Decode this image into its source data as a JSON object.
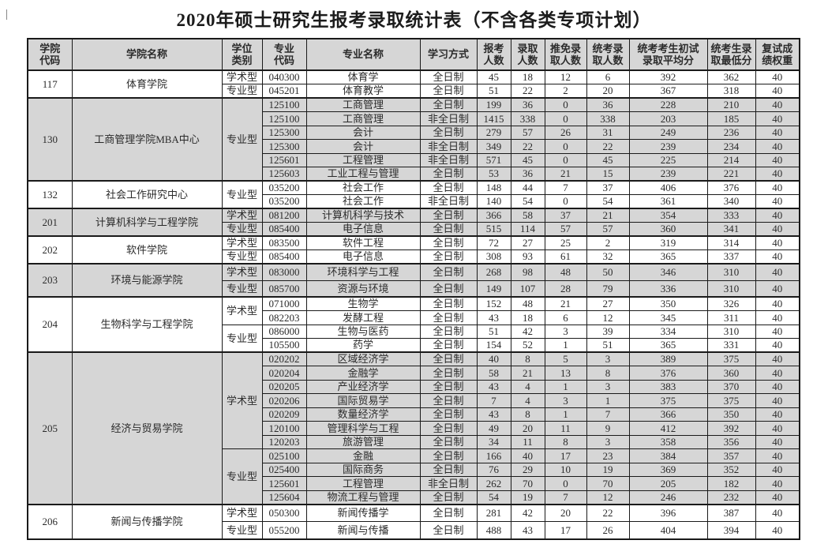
{
  "title": "2020年硕士研究生报考录取统计表（不含各类专项计划）",
  "columns": [
    "学院\n代码",
    "学院名称",
    "学位\n类别",
    "专业\n代码",
    "专业名称",
    "学习方式",
    "报考\n人数",
    "录取\n人数",
    "推免录\n取人数",
    "统考录\n取人数",
    "统考考生初试\n录取平均分",
    "统考生录\n取最低分",
    "复试成\n绩权重"
  ],
  "colors": {
    "shaded_row_bg": "#d6d6d6",
    "header_bg": "#d6d6d6",
    "border": "#1a1a1a",
    "text": "#2b2b2b"
  },
  "groups": [
    {
      "code": "117",
      "name": "体育学院",
      "shaded": false,
      "segments": [
        {
          "degree": "学术型",
          "rows": [
            {
              "major_code": "040300",
              "major": "体育学",
              "mode": "全日制",
              "applied": "45",
              "admitted": "18",
              "exempted": "12",
              "exam_admitted": "6",
              "avg_score": "392",
              "min_score": "362",
              "weight": "40"
            }
          ]
        },
        {
          "degree": "专业型",
          "rows": [
            {
              "major_code": "045201",
              "major": "体育教学",
              "mode": "全日制",
              "applied": "51",
              "admitted": "22",
              "exempted": "2",
              "exam_admitted": "20",
              "avg_score": "367",
              "min_score": "318",
              "weight": "40"
            }
          ]
        }
      ]
    },
    {
      "code": "130",
      "name": "工商管理学院MBA中心",
      "shaded": true,
      "segments": [
        {
          "degree": "专业型",
          "rows": [
            {
              "major_code": "125100",
              "major": "工商管理",
              "mode": "全日制",
              "applied": "199",
              "admitted": "36",
              "exempted": "0",
              "exam_admitted": "36",
              "avg_score": "228",
              "min_score": "210",
              "weight": "40"
            },
            {
              "major_code": "125100",
              "major": "工商管理",
              "mode": "非全日制",
              "applied": "1415",
              "admitted": "338",
              "exempted": "0",
              "exam_admitted": "338",
              "avg_score": "203",
              "min_score": "185",
              "weight": "40"
            },
            {
              "major_code": "125300",
              "major": "会计",
              "mode": "全日制",
              "applied": "279",
              "admitted": "57",
              "exempted": "26",
              "exam_admitted": "31",
              "avg_score": "249",
              "min_score": "236",
              "weight": "40"
            },
            {
              "major_code": "125300",
              "major": "会计",
              "mode": "非全日制",
              "applied": "349",
              "admitted": "22",
              "exempted": "0",
              "exam_admitted": "22",
              "avg_score": "239",
              "min_score": "234",
              "weight": "40"
            },
            {
              "major_code": "125601",
              "major": "工程管理",
              "mode": "非全日制",
              "applied": "571",
              "admitted": "45",
              "exempted": "0",
              "exam_admitted": "45",
              "avg_score": "225",
              "min_score": "214",
              "weight": "40"
            },
            {
              "major_code": "125603",
              "major": "工业工程与管理",
              "mode": "全日制",
              "applied": "53",
              "admitted": "36",
              "exempted": "21",
              "exam_admitted": "15",
              "avg_score": "239",
              "min_score": "221",
              "weight": "40"
            }
          ]
        }
      ]
    },
    {
      "code": "132",
      "name": "社会工作研究中心",
      "shaded": false,
      "segments": [
        {
          "degree": "专业型",
          "rows": [
            {
              "major_code": "035200",
              "major": "社会工作",
              "mode": "全日制",
              "applied": "148",
              "admitted": "44",
              "exempted": "7",
              "exam_admitted": "37",
              "avg_score": "406",
              "min_score": "376",
              "weight": "40"
            },
            {
              "major_code": "035200",
              "major": "社会工作",
              "mode": "非全日制",
              "applied": "140",
              "admitted": "54",
              "exempted": "0",
              "exam_admitted": "54",
              "avg_score": "361",
              "min_score": "340",
              "weight": "40"
            }
          ]
        }
      ]
    },
    {
      "code": "201",
      "name": "计算机科学与工程学院",
      "shaded": true,
      "segments": [
        {
          "degree": "学术型",
          "rows": [
            {
              "major_code": "081200",
              "major": "计算机科学与技术",
              "mode": "全日制",
              "applied": "366",
              "admitted": "58",
              "exempted": "37",
              "exam_admitted": "21",
              "avg_score": "354",
              "min_score": "333",
              "weight": "40"
            }
          ]
        },
        {
          "degree": "专业型",
          "rows": [
            {
              "major_code": "085400",
              "major": "电子信息",
              "mode": "全日制",
              "applied": "515",
              "admitted": "114",
              "exempted": "57",
              "exam_admitted": "57",
              "avg_score": "360",
              "min_score": "341",
              "weight": "40"
            }
          ]
        }
      ]
    },
    {
      "code": "202",
      "name": "软件学院",
      "shaded": false,
      "segments": [
        {
          "degree": "学术型",
          "rows": [
            {
              "major_code": "083500",
              "major": "软件工程",
              "mode": "全日制",
              "applied": "72",
              "admitted": "27",
              "exempted": "25",
              "exam_admitted": "2",
              "avg_score": "319",
              "min_score": "314",
              "weight": "40"
            }
          ]
        },
        {
          "degree": "专业型",
          "rows": [
            {
              "major_code": "085400",
              "major": "电子信息",
              "mode": "全日制",
              "applied": "308",
              "admitted": "93",
              "exempted": "61",
              "exam_admitted": "32",
              "avg_score": "365",
              "min_score": "337",
              "weight": "40"
            }
          ]
        }
      ]
    },
    {
      "code": "203",
      "name": "环境与能源学院",
      "shaded": true,
      "segments": [
        {
          "degree": "学术型",
          "rows": [
            {
              "major_code": "083000",
              "major": "环境科学与工程",
              "mode": "全日制",
              "applied": "268",
              "admitted": "98",
              "exempted": "48",
              "exam_admitted": "50",
              "avg_score": "346",
              "min_score": "310",
              "weight": "40"
            }
          ]
        },
        {
          "degree": "专业型",
          "rows": [
            {
              "major_code": "085700",
              "major": "资源与环境",
              "mode": "全日制",
              "applied": "149",
              "admitted": "107",
              "exempted": "28",
              "exam_admitted": "79",
              "avg_score": "336",
              "min_score": "310",
              "weight": "40"
            }
          ]
        }
      ]
    },
    {
      "code": "204",
      "name": "生物科学与工程学院",
      "shaded": false,
      "segments": [
        {
          "degree": "学术型",
          "rows": [
            {
              "major_code": "071000",
              "major": "生物学",
              "mode": "全日制",
              "applied": "152",
              "admitted": "48",
              "exempted": "21",
              "exam_admitted": "27",
              "avg_score": "350",
              "min_score": "326",
              "weight": "40"
            },
            {
              "major_code": "082203",
              "major": "发酵工程",
              "mode": "全日制",
              "applied": "43",
              "admitted": "18",
              "exempted": "6",
              "exam_admitted": "12",
              "avg_score": "345",
              "min_score": "311",
              "weight": "40"
            }
          ]
        },
        {
          "degree": "专业型",
          "rows": [
            {
              "major_code": "086000",
              "major": "生物与医药",
              "mode": "全日制",
              "applied": "51",
              "admitted": "42",
              "exempted": "3",
              "exam_admitted": "39",
              "avg_score": "334",
              "min_score": "310",
              "weight": "40"
            },
            {
              "major_code": "105500",
              "major": "药学",
              "mode": "全日制",
              "applied": "154",
              "admitted": "52",
              "exempted": "1",
              "exam_admitted": "51",
              "avg_score": "365",
              "min_score": "331",
              "weight": "40"
            }
          ]
        }
      ]
    },
    {
      "code": "205",
      "name": "经济与贸易学院",
      "shaded": true,
      "segments": [
        {
          "degree": "学术型",
          "rows": [
            {
              "major_code": "020202",
              "major": "区域经济学",
              "mode": "全日制",
              "applied": "40",
              "admitted": "8",
              "exempted": "5",
              "exam_admitted": "3",
              "avg_score": "389",
              "min_score": "375",
              "weight": "40"
            },
            {
              "major_code": "020204",
              "major": "金融学",
              "mode": "全日制",
              "applied": "58",
              "admitted": "21",
              "exempted": "13",
              "exam_admitted": "8",
              "avg_score": "376",
              "min_score": "360",
              "weight": "40"
            },
            {
              "major_code": "020205",
              "major": "产业经济学",
              "mode": "全日制",
              "applied": "43",
              "admitted": "4",
              "exempted": "1",
              "exam_admitted": "3",
              "avg_score": "383",
              "min_score": "370",
              "weight": "40"
            },
            {
              "major_code": "020206",
              "major": "国际贸易学",
              "mode": "全日制",
              "applied": "7",
              "admitted": "4",
              "exempted": "3",
              "exam_admitted": "1",
              "avg_score": "375",
              "min_score": "375",
              "weight": "40"
            },
            {
              "major_code": "020209",
              "major": "数量经济学",
              "mode": "全日制",
              "applied": "43",
              "admitted": "8",
              "exempted": "1",
              "exam_admitted": "7",
              "avg_score": "366",
              "min_score": "350",
              "weight": "40"
            },
            {
              "major_code": "120100",
              "major": "管理科学与工程",
              "mode": "全日制",
              "applied": "49",
              "admitted": "20",
              "exempted": "11",
              "exam_admitted": "9",
              "avg_score": "412",
              "min_score": "392",
              "weight": "40"
            },
            {
              "major_code": "120203",
              "major": "旅游管理",
              "mode": "全日制",
              "applied": "34",
              "admitted": "11",
              "exempted": "8",
              "exam_admitted": "3",
              "avg_score": "358",
              "min_score": "356",
              "weight": "40"
            }
          ]
        },
        {
          "degree": "专业型",
          "rows": [
            {
              "major_code": "025100",
              "major": "金融",
              "mode": "全日制",
              "applied": "166",
              "admitted": "40",
              "exempted": "17",
              "exam_admitted": "23",
              "avg_score": "384",
              "min_score": "357",
              "weight": "40"
            },
            {
              "major_code": "025400",
              "major": "国际商务",
              "mode": "全日制",
              "applied": "76",
              "admitted": "29",
              "exempted": "10",
              "exam_admitted": "19",
              "avg_score": "369",
              "min_score": "352",
              "weight": "40"
            },
            {
              "major_code": "125601",
              "major": "工程管理",
              "mode": "非全日制",
              "applied": "262",
              "admitted": "70",
              "exempted": "0",
              "exam_admitted": "70",
              "avg_score": "205",
              "min_score": "182",
              "weight": "40"
            },
            {
              "major_code": "125604",
              "major": "物流工程与管理",
              "mode": "全日制",
              "applied": "54",
              "admitted": "19",
              "exempted": "7",
              "exam_admitted": "12",
              "avg_score": "246",
              "min_score": "232",
              "weight": "40"
            }
          ]
        }
      ]
    },
    {
      "code": "206",
      "name": "新闻与传播学院",
      "shaded": false,
      "segments": [
        {
          "degree": "学术型",
          "rows": [
            {
              "major_code": "050300",
              "major": "新闻传播学",
              "mode": "全日制",
              "applied": "281",
              "admitted": "42",
              "exempted": "20",
              "exam_admitted": "22",
              "avg_score": "396",
              "min_score": "387",
              "weight": "40"
            }
          ]
        },
        {
          "degree": "专业型",
          "rows": [
            {
              "major_code": "055200",
              "major": "新闻与传播",
              "mode": "全日制",
              "applied": "488",
              "admitted": "43",
              "exempted": "17",
              "exam_admitted": "26",
              "avg_score": "404",
              "min_score": "394",
              "weight": "40"
            }
          ]
        }
      ]
    }
  ]
}
